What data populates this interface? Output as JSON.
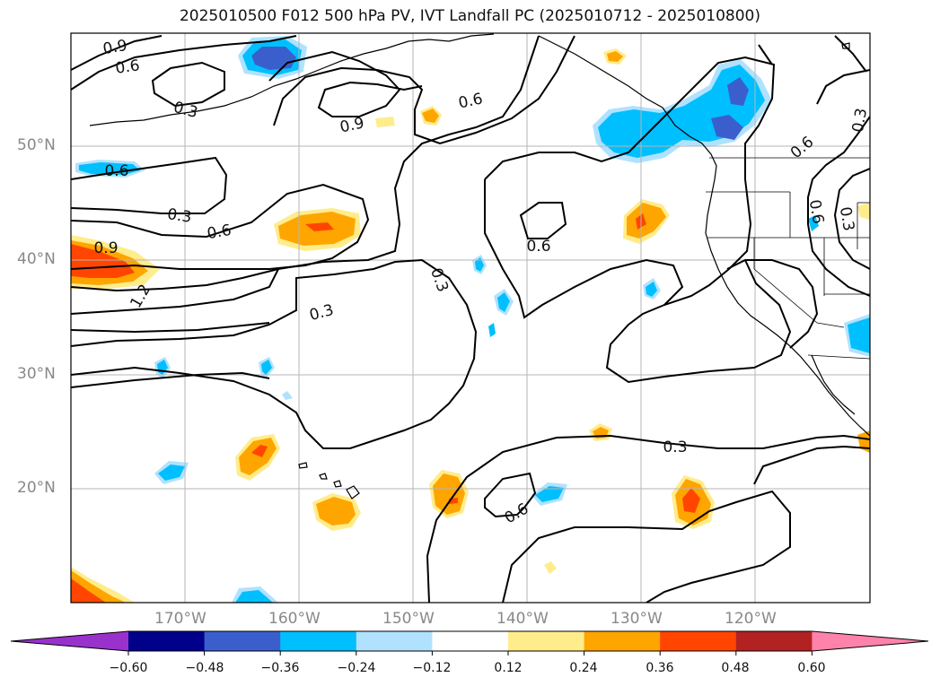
{
  "title": "2025010500 F012 500 hPa PV, IVT Landfall PC (2025010712 - 2025010800)",
  "lat_labels": [
    "50°N",
    "40°N",
    "30°N",
    "20°N"
  ],
  "lon_labels": [
    "170°W",
    "160°W",
    "150°W",
    "140°W",
    "130°W",
    "120°W"
  ],
  "colorbar": {
    "colors": [
      "#9932cc",
      "#00008b",
      "#3a5fcd",
      "#00bfff",
      "#b0e2ff",
      "#ffffff",
      "#ffec8b",
      "#ffa500",
      "#ff4500",
      "#b22222",
      "#ff82ab"
    ],
    "ticks": [
      "−0.60",
      "−0.48",
      "−0.36",
      "−0.24",
      "−0.12",
      "0.12",
      "0.24",
      "0.36",
      "0.48",
      "0.60"
    ],
    "extend": "both"
  },
  "contour_labels": [
    {
      "text": "0.9"
    },
    {
      "text": "0.6"
    },
    {
      "text": "0.3"
    },
    {
      "text": "0.9"
    },
    {
      "text": "0.6"
    },
    {
      "text": "0.6"
    },
    {
      "text": "0.3"
    },
    {
      "text": "0.6"
    },
    {
      "text": "0.3"
    },
    {
      "text": "0.6"
    },
    {
      "text": "0.9"
    },
    {
      "text": "1.2"
    },
    {
      "text": "0.3"
    },
    {
      "text": "0.3"
    },
    {
      "text": "0.3"
    },
    {
      "text": "0.6"
    },
    {
      "text": "0.6"
    },
    {
      "text": "0.6"
    },
    {
      "text": "0.3"
    }
  ]
}
